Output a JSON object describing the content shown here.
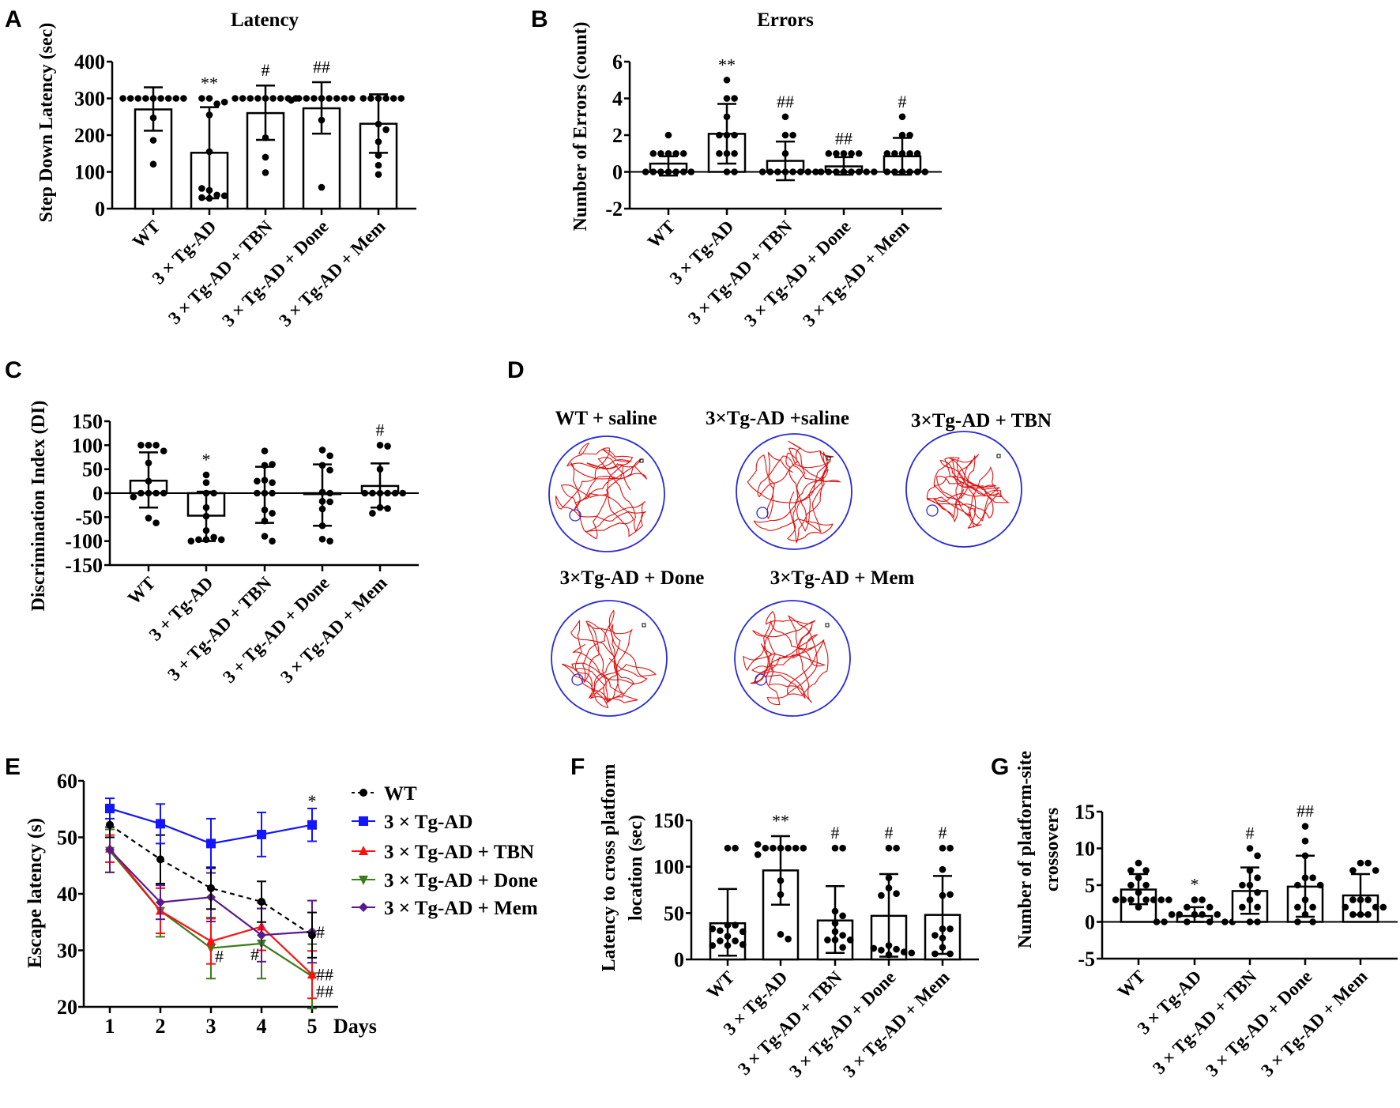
{
  "panel_letters": {
    "A": "A",
    "B": "B",
    "C": "C",
    "D": "D",
    "E": "E",
    "F": "F",
    "G": "G"
  },
  "colors": {
    "wt": "#000000",
    "tgad": "#1414ff",
    "tbn": "#ff1010",
    "done": "#3a7d1a",
    "mem": "#5a1a8c",
    "maze_border": "#2a2ad8",
    "maze_path": "#e01010"
  },
  "chart_data": [
    {
      "id": "A",
      "type": "bar",
      "title": "Latency",
      "ylabel": "Step Down Latency (sec)",
      "xlabel": "",
      "ylim": [
        0,
        400
      ],
      "y_ticks": [
        0,
        100,
        200,
        300,
        400
      ],
      "categories": [
        "WT",
        "3 × Tg-AD",
        "3 × Tg-AD + TBN",
        "3 × Tg-AD + Done",
        "3 × Tg-AD + Mem"
      ],
      "values": [
        270,
        152,
        260,
        273,
        231
      ],
      "sd_upper": [
        330,
        276,
        335,
        344,
        311
      ],
      "sd_lower": [
        212,
        28,
        187,
        204,
        152
      ],
      "annotations": [
        "",
        "**",
        "#",
        "##",
        ""
      ],
      "points": [
        [
          300,
          300,
          300,
          300,
          300,
          300,
          300,
          300,
          300,
          247,
          186,
          121
        ],
        [
          300,
          285,
          300,
          290,
          255,
          155,
          50,
          37,
          55,
          30,
          28,
          35
        ],
        [
          300,
          300,
          300,
          300,
          300,
          300,
          300,
          300,
          300,
          193,
          140,
          98
        ],
        [
          300,
          300,
          300,
          300,
          300,
          300,
          300,
          300,
          295,
          241,
          58
        ],
        [
          300,
          300,
          300,
          300,
          300,
          300,
          230,
          215,
          182,
          145,
          118,
          93
        ]
      ]
    },
    {
      "id": "B",
      "type": "bar",
      "title": "Errors",
      "ylabel": "Number of Errors (count)",
      "xlabel": "",
      "ylim": [
        -2,
        6
      ],
      "y_ticks": [
        -2,
        0,
        2,
        4,
        6
      ],
      "categories": [
        "WT",
        "3 × Tg-AD",
        "3 × Tg-AD + TBN",
        "3 × Tg-AD + Done",
        "3 × Tg-AD + Mem"
      ],
      "values": [
        0.45,
        2.07,
        0.6,
        0.3,
        0.85
      ],
      "sd_upper": [
        0.85,
        3.7,
        1.65,
        0.8,
        1.85
      ],
      "sd_lower": [
        -0.2,
        0.45,
        -0.45,
        -0.15,
        -0.15
      ],
      "annotations": [
        "",
        "**",
        "##",
        "##",
        "#"
      ],
      "points": [
        [
          2,
          1,
          1,
          1,
          1,
          1,
          0,
          0,
          0,
          0,
          0,
          0,
          0
        ],
        [
          5,
          4,
          4,
          3,
          2,
          2,
          2,
          1,
          1,
          1,
          0,
          0
        ],
        [
          3,
          2,
          2,
          1,
          0,
          0,
          0,
          0,
          0,
          0,
          0,
          0
        ],
        [
          1,
          1,
          1,
          1,
          1,
          0,
          0,
          0,
          0,
          0,
          0,
          0,
          0
        ],
        [
          3,
          2,
          2,
          1,
          1,
          1,
          1,
          1,
          0,
          0,
          0,
          0,
          0,
          0
        ]
      ]
    },
    {
      "id": "C",
      "type": "bar",
      "title": "",
      "ylabel": "Discrimination Index (DI)",
      "xlabel": "",
      "ylim": [
        -150,
        150
      ],
      "y_ticks": [
        -150,
        -100,
        -50,
        0,
        50,
        100,
        150
      ],
      "categories": [
        "WT",
        "3 + Tg-AD",
        "3 + Tg-AD + TBN",
        "3 + Tg-AD + Done",
        "3 × Tg-AD + Mem"
      ],
      "values": [
        26,
        -47,
        0,
        -2,
        15
      ],
      "sd_upper": [
        85,
        3,
        55,
        60,
        62
      ],
      "sd_lower": [
        -30,
        -100,
        -62,
        -68,
        -30
      ],
      "annotations": [
        "",
        "*",
        "",
        "",
        "#"
      ],
      "points": [
        [
          100,
          100,
          100,
          88,
          63,
          25,
          0,
          0,
          0,
          0,
          -8,
          -52,
          -62
        ],
        [
          38,
          22,
          0,
          0,
          -30,
          -48,
          -78,
          -92,
          -97,
          -97,
          -97,
          -100
        ],
        [
          88,
          58,
          60,
          27,
          22,
          25,
          0,
          0,
          0,
          -35,
          -42,
          -58,
          -90,
          -100
        ],
        [
          90,
          78,
          58,
          48,
          2,
          0,
          -17,
          -18,
          -33,
          -68,
          -96,
          -100
        ],
        [
          100,
          98,
          50,
          0,
          0,
          0,
          0,
          0,
          0,
          -30,
          -32,
          -42
        ]
      ]
    },
    {
      "id": "E",
      "type": "line",
      "title": "",
      "ylabel": "Escape latency (s)",
      "xlabel": "Days",
      "x": [
        1,
        2,
        3,
        4,
        5
      ],
      "ylim": [
        20,
        60
      ],
      "y_ticks": [
        20,
        30,
        40,
        50,
        60
      ],
      "series": [
        {
          "name": "WT",
          "key": "wt",
          "marker": "circle",
          "dashed": true,
          "values": [
            52.2,
            46.1,
            41.0,
            38.6,
            32.7
          ],
          "err": [
            2.2,
            4.3,
            3.7,
            3.6,
            4.0
          ]
        },
        {
          "name": "3 × Tg-AD",
          "key": "tgad",
          "marker": "square",
          "dashed": false,
          "values": [
            55.1,
            52.4,
            48.9,
            50.5,
            52.2
          ],
          "err": [
            1.8,
            3.5,
            4.4,
            3.9,
            2.9
          ]
        },
        {
          "name": "3 × Tg-AD + TBN",
          "key": "tbn",
          "marker": "triangle-up",
          "dashed": false,
          "values": [
            48.0,
            37.0,
            31.6,
            34.2,
            25.7
          ],
          "err": [
            2.4,
            4.0,
            4.0,
            4.2,
            4.2
          ]
        },
        {
          "name": "3 × Tg-AD + Done",
          "key": "done",
          "marker": "triangle-down",
          "dashed": false,
          "values": [
            47.6,
            37.0,
            30.4,
            31.2,
            25.4
          ],
          "err": [
            3.8,
            4.6,
            5.4,
            6.2,
            5.7
          ]
        },
        {
          "name": "3 × Tg-AD + Mem",
          "key": "mem",
          "marker": "diamond",
          "dashed": false,
          "values": [
            47.8,
            38.5,
            39.4,
            32.7,
            33.3
          ],
          "err": [
            4.0,
            3.0,
            4.3,
            4.7,
            5.5
          ]
        }
      ],
      "annotations": [
        {
          "text": "*",
          "key": "tgad",
          "day": 5,
          "y": 56.5,
          "pos": "above"
        },
        {
          "text": "#",
          "key": "mem",
          "day": 5,
          "y": 33.3,
          "pos": "right"
        },
        {
          "text": "#",
          "key": "done",
          "day": 3,
          "y": 29,
          "pos": "right"
        },
        {
          "text": "#",
          "key": "done",
          "day": 4,
          "y": 29.4,
          "pos": "left"
        },
        {
          "text": "##",
          "key": "done",
          "day": 5,
          "y": 25.8,
          "pos": "right"
        },
        {
          "text": "##",
          "key": "tbn",
          "day": 5,
          "y": 22.8,
          "pos": "right"
        }
      ],
      "legend": "right"
    },
    {
      "id": "F",
      "type": "bar",
      "title": "",
      "ylabel": "Latency to cross platform",
      "ylabel2": "location  (sec)",
      "xlabel": "",
      "ylim": [
        0,
        150
      ],
      "y_ticks": [
        0,
        50,
        100,
        150
      ],
      "categories": [
        "WT",
        "3 × Tg-AD",
        "3 × Tg-AD + TBN",
        "3 × Tg-AD + Done",
        "3 × Tg-AD + Mem"
      ],
      "values": [
        39,
        96,
        42,
        47,
        48
      ],
      "sd_upper": [
        76,
        133,
        79,
        92,
        90
      ],
      "sd_lower": [
        4,
        59,
        7,
        3,
        6
      ],
      "annotations": [
        "",
        "**",
        "#",
        "#",
        "#"
      ],
      "points": [
        [
          120,
          120,
          37,
          37,
          31,
          30,
          33,
          25,
          20,
          20,
          15,
          16,
          15
        ],
        [
          120,
          120,
          120,
          120,
          120,
          120,
          124,
          113,
          85,
          70,
          27,
          22
        ],
        [
          120,
          120,
          52,
          47,
          39,
          30,
          26,
          21,
          21,
          21,
          13
        ],
        [
          120,
          120,
          88,
          77,
          71,
          69,
          15,
          11,
          10,
          8,
          12,
          5,
          7
        ],
        [
          120,
          120,
          97,
          69,
          70,
          33,
          33,
          26,
          23,
          13,
          6,
          6
        ]
      ]
    },
    {
      "id": "G",
      "type": "bar",
      "title": "",
      "ylabel": "Number of platform-site",
      "ylabel2": "crossovers",
      "xlabel": "",
      "ylim": [
        -5,
        15
      ],
      "y_ticks": [
        -5,
        0,
        5,
        10,
        15
      ],
      "categories": [
        "WT",
        "3 × Tg-AD",
        "3 × Tg-AD + TBN",
        "3 × Tg-AD + Done",
        "3 × Tg-AD + Mem"
      ],
      "values": [
        4.4,
        0.8,
        4.2,
        4.8,
        3.6
      ],
      "sd_upper": [
        6.5,
        2.0,
        7.4,
        9.0,
        6.5
      ],
      "sd_lower": [
        2.4,
        0,
        1.1,
        0.7,
        1.0
      ],
      "annotations": [
        "",
        "*",
        "#",
        "##",
        ""
      ],
      "points": [
        [
          8,
          7,
          7,
          6,
          5,
          5,
          4,
          3,
          3,
          3,
          3,
          3,
          3,
          3,
          2
        ],
        [
          3,
          3,
          2,
          2,
          1,
          1,
          1,
          1,
          1,
          0,
          0,
          0,
          0,
          0,
          0
        ],
        [
          10,
          9,
          7,
          6,
          5,
          5,
          4,
          3,
          2,
          2,
          0,
          0
        ],
        [
          13,
          11,
          9,
          6,
          6,
          5,
          5,
          3,
          2,
          2,
          1,
          0,
          0
        ],
        [
          8,
          8,
          7,
          7,
          3,
          3,
          3,
          2,
          2,
          2,
          1,
          1,
          1
        ]
      ]
    }
  ],
  "mazes": {
    "labels": [
      "WT + saline",
      "3×Tg-AD +saline",
      "3×Tg-AD + TBN",
      "3×Tg-AD + Done",
      "3×Tg-AD + Mem"
    ]
  }
}
